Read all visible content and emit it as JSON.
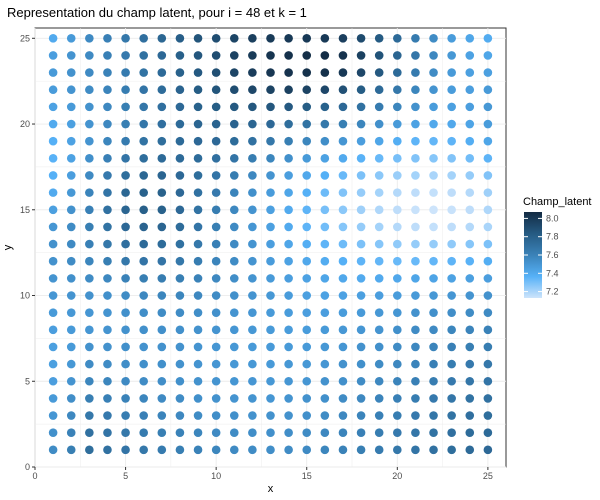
{
  "chart_data": {
    "type": "heatmap",
    "title": "Representation du champ latent, pour i = 48 et k = 1",
    "xlabel": "x",
    "ylabel": "y",
    "x_ticks": [
      0,
      5,
      10,
      15,
      20,
      25
    ],
    "y_ticks": [
      0,
      5,
      10,
      15,
      20,
      25
    ],
    "xlim": [
      0,
      26
    ],
    "ylim": [
      0,
      25.6
    ],
    "grid": true,
    "legend": {
      "title": "Champ_latent",
      "placement": "right",
      "ticks": [
        7.2,
        7.4,
        7.6,
        7.8,
        8.0
      ],
      "range": [
        7.13,
        8.07
      ],
      "colors": [
        "#cde4fb",
        "#56b1f7",
        "#3a82b8",
        "#255a82",
        "#132b43"
      ]
    },
    "x": [
      1,
      2,
      3,
      4,
      5,
      6,
      7,
      8,
      9,
      10,
      11,
      12,
      13,
      14,
      15,
      16,
      17,
      18,
      19,
      20,
      21,
      22,
      23,
      24,
      25
    ],
    "y": [
      1,
      2,
      3,
      4,
      5,
      6,
      7,
      8,
      9,
      10,
      11,
      12,
      13,
      14,
      15,
      16,
      17,
      18,
      19,
      20,
      21,
      22,
      23,
      24,
      25
    ],
    "z": [
      [
        7.55,
        7.62,
        7.72,
        7.7,
        7.68,
        7.66,
        7.64,
        7.62,
        7.6,
        7.58,
        7.56,
        7.55,
        7.54,
        7.55,
        7.56,
        7.58,
        7.6,
        7.62,
        7.64,
        7.66,
        7.68,
        7.7,
        7.72,
        7.74,
        7.75
      ],
      [
        7.53,
        7.6,
        7.7,
        7.68,
        7.66,
        7.64,
        7.62,
        7.6,
        7.58,
        7.56,
        7.55,
        7.54,
        7.53,
        7.54,
        7.55,
        7.57,
        7.59,
        7.61,
        7.63,
        7.65,
        7.67,
        7.69,
        7.71,
        7.73,
        7.74
      ],
      [
        7.5,
        7.57,
        7.66,
        7.65,
        7.63,
        7.61,
        7.59,
        7.57,
        7.55,
        7.54,
        7.53,
        7.52,
        7.52,
        7.52,
        7.53,
        7.55,
        7.57,
        7.59,
        7.61,
        7.63,
        7.65,
        7.67,
        7.69,
        7.71,
        7.72
      ],
      [
        7.48,
        7.54,
        7.62,
        7.61,
        7.6,
        7.58,
        7.56,
        7.55,
        7.53,
        7.52,
        7.51,
        7.51,
        7.5,
        7.51,
        7.52,
        7.53,
        7.55,
        7.57,
        7.59,
        7.61,
        7.63,
        7.65,
        7.67,
        7.69,
        7.7
      ],
      [
        7.46,
        7.51,
        7.58,
        7.58,
        7.56,
        7.55,
        7.54,
        7.53,
        7.52,
        7.51,
        7.5,
        7.5,
        7.49,
        7.5,
        7.5,
        7.52,
        7.53,
        7.55,
        7.57,
        7.59,
        7.61,
        7.63,
        7.65,
        7.67,
        7.68
      ],
      [
        7.45,
        7.49,
        7.55,
        7.55,
        7.54,
        7.53,
        7.53,
        7.52,
        7.51,
        7.5,
        7.49,
        7.49,
        7.48,
        7.49,
        7.49,
        7.5,
        7.52,
        7.53,
        7.55,
        7.57,
        7.59,
        7.61,
        7.63,
        7.65,
        7.66
      ],
      [
        7.45,
        7.48,
        7.52,
        7.52,
        7.53,
        7.52,
        7.52,
        7.52,
        7.51,
        7.5,
        7.49,
        7.48,
        7.48,
        7.48,
        7.48,
        7.49,
        7.5,
        7.52,
        7.53,
        7.55,
        7.57,
        7.59,
        7.61,
        7.62,
        7.63
      ],
      [
        7.46,
        7.48,
        7.5,
        7.51,
        7.52,
        7.53,
        7.53,
        7.53,
        7.52,
        7.51,
        7.5,
        7.49,
        7.48,
        7.47,
        7.47,
        7.48,
        7.49,
        7.5,
        7.51,
        7.53,
        7.55,
        7.56,
        7.58,
        7.59,
        7.6
      ],
      [
        7.48,
        7.49,
        7.5,
        7.51,
        7.53,
        7.54,
        7.55,
        7.55,
        7.54,
        7.53,
        7.51,
        7.5,
        7.48,
        7.47,
        7.46,
        7.46,
        7.47,
        7.48,
        7.49,
        7.5,
        7.52,
        7.53,
        7.54,
        7.55,
        7.56
      ],
      [
        7.5,
        7.51,
        7.52,
        7.53,
        7.55,
        7.57,
        7.58,
        7.58,
        7.57,
        7.55,
        7.53,
        7.51,
        7.49,
        7.47,
        7.45,
        7.44,
        7.44,
        7.45,
        7.46,
        7.47,
        7.48,
        7.49,
        7.5,
        7.51,
        7.52
      ],
      [
        7.51,
        7.53,
        7.55,
        7.57,
        7.6,
        7.62,
        7.63,
        7.62,
        7.6,
        7.57,
        7.54,
        7.51,
        7.48,
        7.46,
        7.44,
        7.42,
        7.41,
        7.4,
        7.4,
        7.41,
        7.42,
        7.43,
        7.44,
        7.45,
        7.46
      ],
      [
        7.52,
        7.55,
        7.58,
        7.62,
        7.66,
        7.68,
        7.68,
        7.66,
        7.63,
        7.59,
        7.55,
        7.51,
        7.47,
        7.44,
        7.41,
        7.39,
        7.37,
        7.35,
        7.34,
        7.33,
        7.33,
        7.34,
        7.35,
        7.36,
        7.38
      ],
      [
        7.52,
        7.56,
        7.61,
        7.66,
        7.71,
        7.74,
        7.73,
        7.7,
        7.66,
        7.61,
        7.56,
        7.51,
        7.46,
        7.42,
        7.38,
        7.35,
        7.32,
        7.29,
        7.27,
        7.25,
        7.24,
        7.24,
        7.25,
        7.27,
        7.29
      ],
      [
        7.5,
        7.55,
        7.62,
        7.69,
        7.75,
        7.78,
        7.77,
        7.73,
        7.68,
        7.62,
        7.56,
        7.5,
        7.45,
        7.4,
        7.35,
        7.31,
        7.27,
        7.24,
        7.21,
        7.18,
        7.16,
        7.15,
        7.16,
        7.18,
        7.2
      ],
      [
        7.45,
        7.52,
        7.61,
        7.7,
        7.77,
        7.8,
        7.79,
        7.75,
        7.69,
        7.63,
        7.57,
        7.51,
        7.45,
        7.4,
        7.35,
        7.3,
        7.26,
        7.22,
        7.19,
        7.16,
        7.14,
        7.13,
        7.14,
        7.16,
        7.19
      ],
      [
        7.4,
        7.49,
        7.59,
        7.68,
        7.76,
        7.79,
        7.79,
        7.75,
        7.7,
        7.65,
        7.59,
        7.53,
        7.47,
        7.42,
        7.37,
        7.32,
        7.28,
        7.24,
        7.21,
        7.18,
        7.16,
        7.15,
        7.16,
        7.18,
        7.22
      ],
      [
        7.37,
        7.46,
        7.56,
        7.65,
        7.72,
        7.76,
        7.77,
        7.75,
        7.72,
        7.68,
        7.63,
        7.57,
        7.51,
        7.46,
        7.41,
        7.37,
        7.33,
        7.29,
        7.26,
        7.23,
        7.21,
        7.2,
        7.21,
        7.24,
        7.28
      ],
      [
        7.36,
        7.44,
        7.53,
        7.61,
        7.68,
        7.72,
        7.74,
        7.74,
        7.73,
        7.71,
        7.68,
        7.63,
        7.58,
        7.53,
        7.48,
        7.44,
        7.4,
        7.36,
        7.33,
        7.3,
        7.28,
        7.27,
        7.28,
        7.31,
        7.35
      ],
      [
        7.37,
        7.44,
        7.51,
        7.58,
        7.64,
        7.69,
        7.72,
        7.74,
        7.75,
        7.75,
        7.73,
        7.7,
        7.66,
        7.62,
        7.58,
        7.54,
        7.5,
        7.46,
        7.42,
        7.38,
        7.35,
        7.34,
        7.35,
        7.38,
        7.42
      ],
      [
        7.4,
        7.45,
        7.51,
        7.57,
        7.62,
        7.67,
        7.71,
        7.74,
        7.77,
        7.78,
        7.78,
        7.77,
        7.75,
        7.72,
        7.69,
        7.66,
        7.62,
        7.58,
        7.53,
        7.48,
        7.44,
        7.41,
        7.41,
        7.43,
        7.47
      ],
      [
        7.44,
        7.48,
        7.52,
        7.57,
        7.62,
        7.67,
        7.71,
        7.75,
        7.79,
        7.82,
        7.84,
        7.85,
        7.85,
        7.84,
        7.82,
        7.79,
        7.75,
        7.7,
        7.64,
        7.58,
        7.52,
        7.47,
        7.45,
        7.46,
        7.49
      ],
      [
        7.47,
        7.51,
        7.55,
        7.59,
        7.63,
        7.68,
        7.73,
        7.78,
        7.82,
        7.86,
        7.9,
        7.93,
        7.95,
        7.96,
        7.95,
        7.93,
        7.88,
        7.82,
        7.74,
        7.66,
        7.58,
        7.51,
        7.47,
        7.46,
        7.48
      ],
      [
        7.48,
        7.52,
        7.56,
        7.6,
        7.64,
        7.69,
        7.74,
        7.79,
        7.84,
        7.89,
        7.94,
        7.98,
        8.01,
        8.03,
        8.04,
        8.04,
        8.0,
        7.93,
        7.84,
        7.74,
        7.64,
        7.55,
        7.48,
        7.45,
        7.45
      ],
      [
        7.46,
        7.51,
        7.56,
        7.61,
        7.65,
        7.7,
        7.75,
        7.8,
        7.85,
        7.9,
        7.95,
        7.99,
        8.02,
        8.04,
        8.05,
        8.06,
        8.03,
        7.96,
        7.87,
        7.77,
        7.67,
        7.57,
        7.49,
        7.44,
        7.42
      ],
      [
        7.4,
        7.48,
        7.56,
        7.61,
        7.66,
        7.71,
        7.76,
        7.81,
        7.86,
        7.9,
        7.94,
        7.97,
        7.99,
        8.0,
        8.0,
        8.0,
        7.97,
        7.91,
        7.83,
        7.74,
        7.64,
        7.55,
        7.47,
        7.42,
        7.39
      ]
    ]
  }
}
